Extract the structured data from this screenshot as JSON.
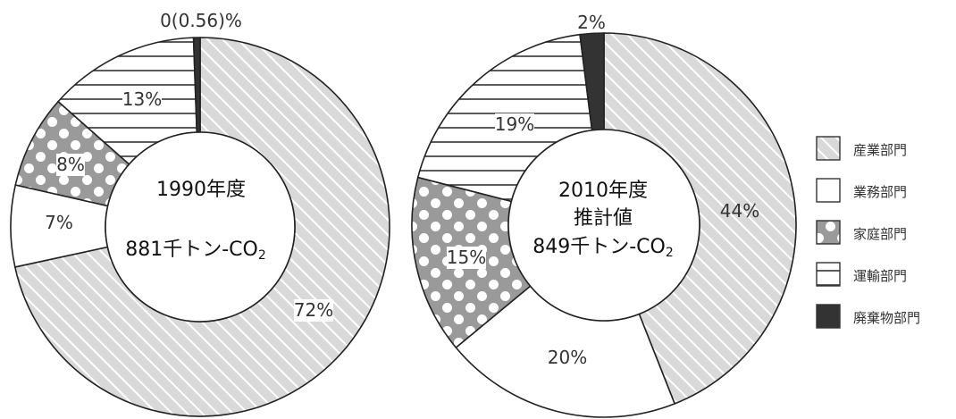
{
  "chart_data": [
    {
      "type": "donut",
      "center_title": "1990年度",
      "center_value": "881千トン-CO",
      "center_sub": "2",
      "categories": [
        "産業部門",
        "業務部門",
        "家庭部門",
        "運輸部門",
        "廃棄物部門"
      ],
      "values": [
        72,
        7,
        8,
        13,
        0.56
      ],
      "labels": [
        "72%",
        "7%",
        "8%",
        "13%",
        "0(0.56)%"
      ]
    },
    {
      "type": "donut",
      "center_title": "2010年度",
      "center_title2": "推計値",
      "center_value": "849千トン-CO",
      "center_sub": "2",
      "categories": [
        "産業部門",
        "業務部門",
        "家庭部門",
        "運輸部門",
        "廃棄物部門"
      ],
      "values": [
        44,
        20,
        15,
        19,
        2
      ],
      "labels": [
        "44%",
        "20%",
        "15%",
        "19%",
        "2%"
      ]
    }
  ],
  "legend": [
    "産業部門",
    "業務部門",
    "家庭部門",
    "運輸部門",
    "廃棄物部門"
  ]
}
